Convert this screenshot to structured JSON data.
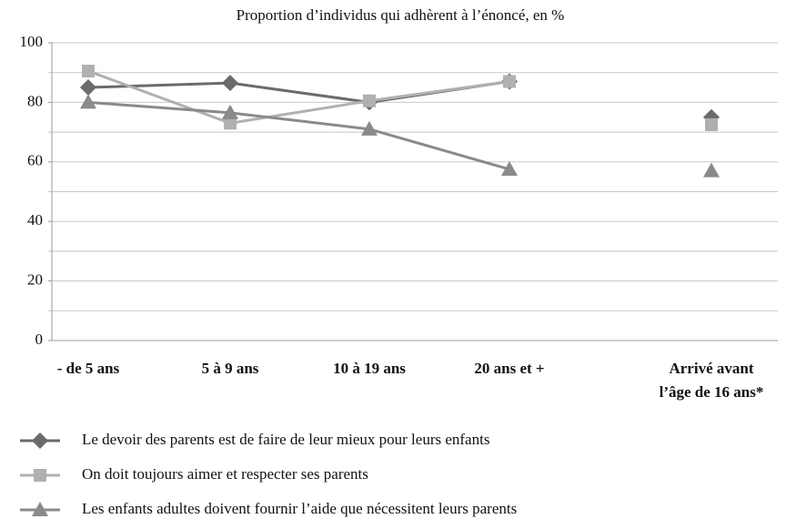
{
  "chart_data": {
    "type": "line",
    "title": "Proportion d’individus qui adhèrent à l’énoncé, en %",
    "categories": [
      "- de 5 ans",
      "5 à 9 ans",
      "10 à 19 ans",
      "20 ans et +",
      null,
      "Arrivé avant\nl’âge de 16 ans*"
    ],
    "series": [
      {
        "name": "Le devoir des parents est de faire de leur mieux pour leurs enfants",
        "color": "#6b6b6b",
        "marker": "diamond",
        "values": [
          85,
          86.5,
          80,
          87,
          null,
          75
        ]
      },
      {
        "name": "On doit toujours aimer et respecter ses parents",
        "color": "#b0b0b0",
        "marker": "square",
        "values": [
          90.5,
          73,
          80.5,
          87,
          null,
          72.5
        ]
      },
      {
        "name": "Les enfants adultes doivent fournir l’aide que nécessitent leurs parents",
        "color": "#8a8a8a",
        "marker": "triangle",
        "values": [
          80,
          76.5,
          71,
          57.5,
          null,
          57
        ]
      }
    ],
    "ylim": [
      0,
      100
    ],
    "yticks": [
      0,
      20,
      40,
      60,
      80,
      100
    ],
    "minor_yticks": [
      10,
      30,
      50,
      70,
      90
    ],
    "grid": true
  }
}
